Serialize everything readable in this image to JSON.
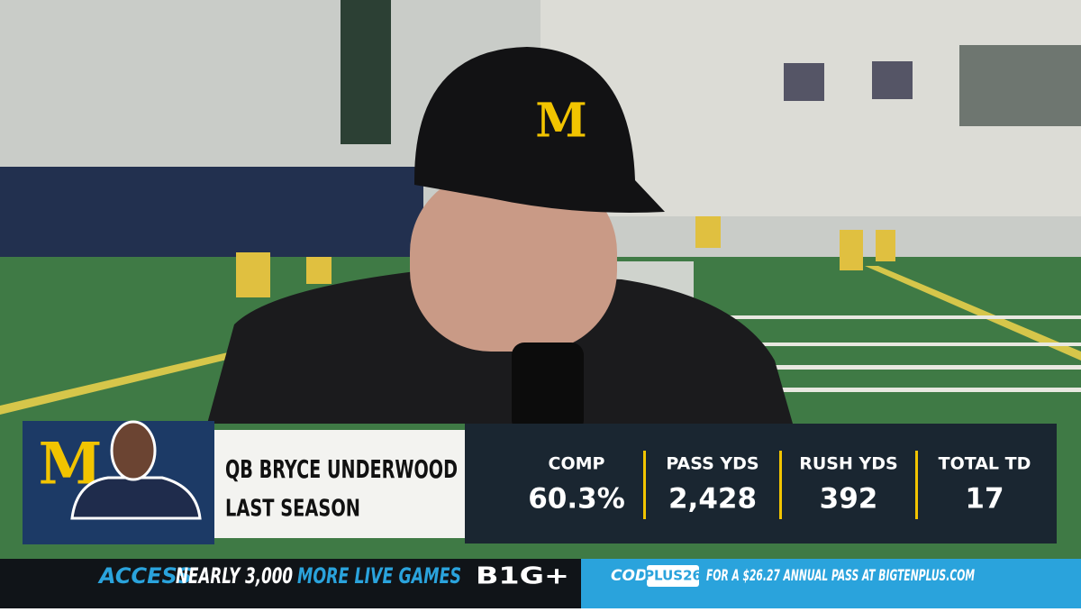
{
  "cap_logo": "M",
  "lower_third": {
    "name": "QB BRYCE UNDERWOOD",
    "subtitle": "LAST SEASON",
    "stats": [
      {
        "label": "COMP",
        "value": "60.3%"
      },
      {
        "label": "PASS YDS",
        "value": "2,428"
      },
      {
        "label": "RUSH YDS",
        "value": "392"
      },
      {
        "label": "TOTAL TD",
        "value": "17"
      }
    ]
  },
  "ticker": {
    "access": "ACCESS",
    "count": "NEARLY 3,000",
    "more": "MORE LIVE GAMES",
    "brand": "B1G+",
    "code_label": "CODE",
    "code": "PLUS26",
    "offer": "FOR A $26.27 ANNUAL PASS AT BIGTENPLUS.COM"
  }
}
